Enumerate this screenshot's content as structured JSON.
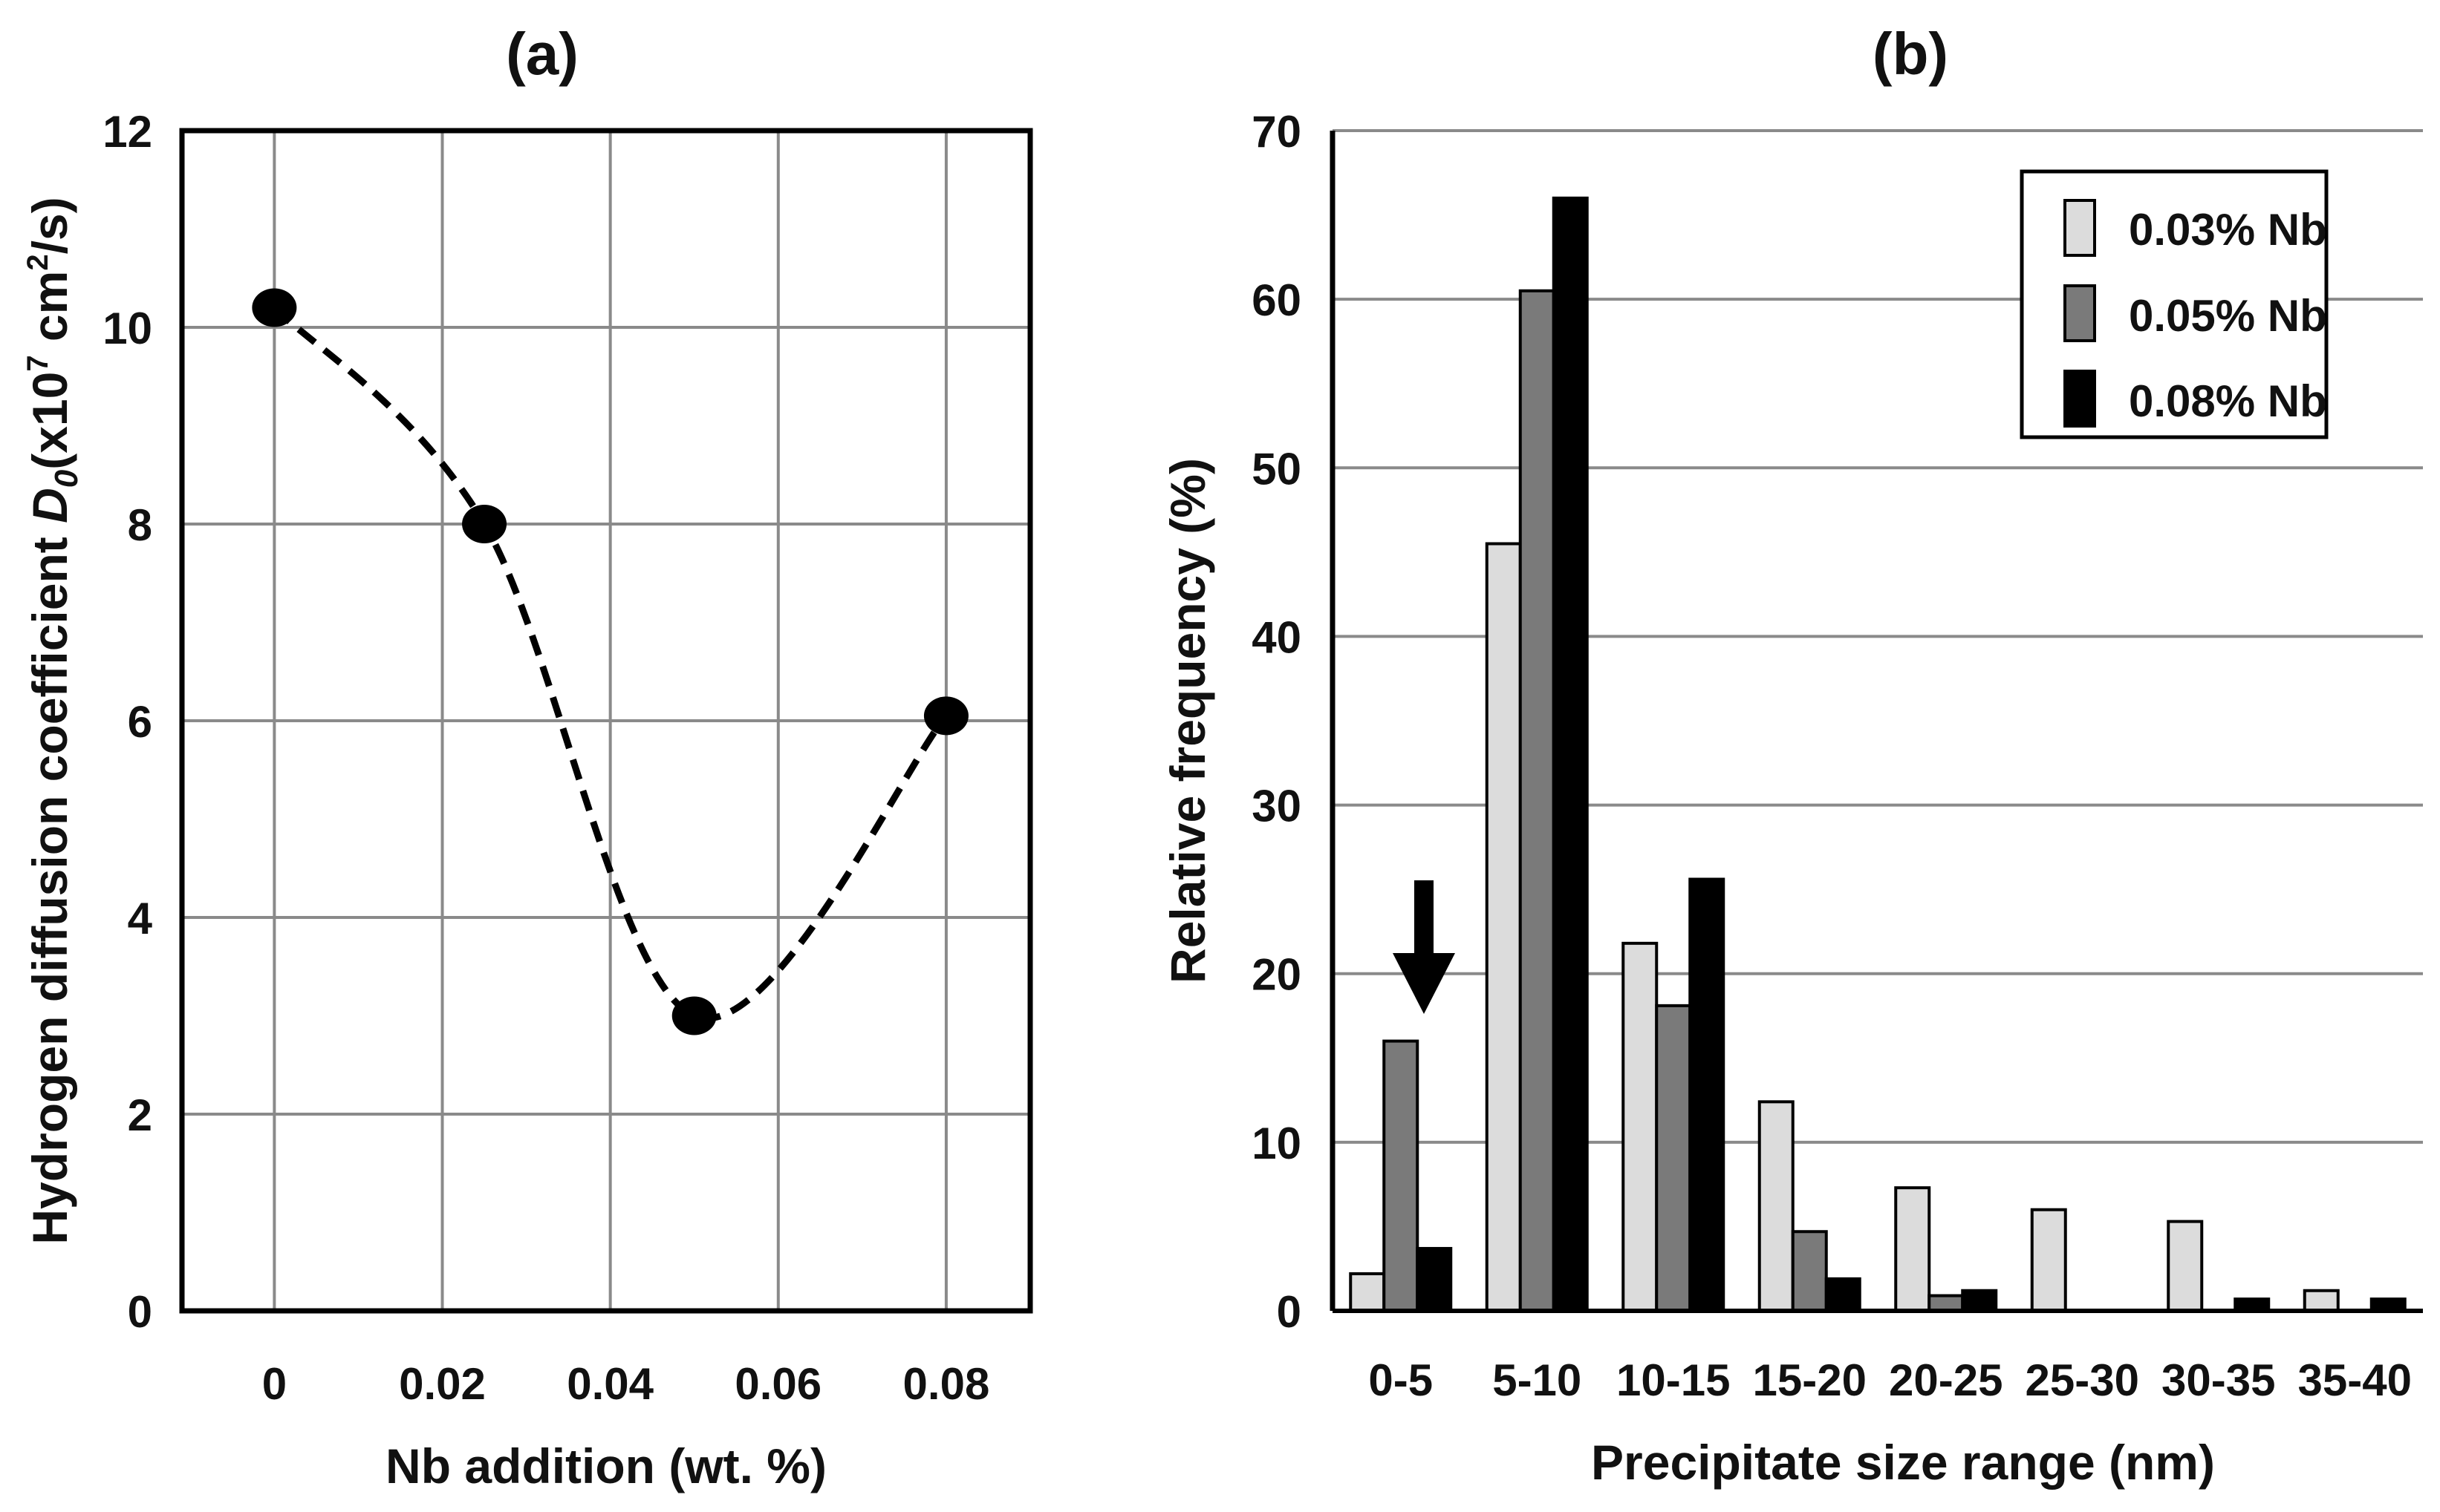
{
  "chart_data": [
    {
      "type": "line",
      "panel": "(a)",
      "title": "(a)",
      "xlabel": "Nb addition (wt. %)",
      "ylabel_main": "Hydrogen diffusion coefficient ",
      "ylabel_sym": "D",
      "ylabel_sub": "0",
      "ylabel_unit_a": "(x10",
      "ylabel_exp1": "7",
      "ylabel_unit_b": " cm",
      "ylabel_exp2": "2",
      "ylabel_unit_c": "/s)",
      "x": [
        0,
        0.025,
        0.05,
        0.08
      ],
      "y": [
        10.2,
        8.0,
        3.0,
        6.05
      ],
      "xlim": [
        -0.011,
        0.09
      ],
      "ylim": [
        0,
        12
      ],
      "xticks": [
        0,
        0.02,
        0.04,
        0.06,
        0.08
      ],
      "xtick_labels": [
        "0",
        "0.02",
        "0.04",
        "0.06",
        "0.08"
      ],
      "yticks": [
        0,
        2,
        4,
        6,
        8,
        10,
        12
      ],
      "ytick_labels": [
        "0",
        "2",
        "4",
        "6",
        "8",
        "10",
        "12"
      ],
      "grid": true,
      "line_style": "dashed"
    },
    {
      "type": "bar",
      "panel": "(b)",
      "title": "(b)",
      "xlabel": "Precipitate size range (nm)",
      "ylabel": "Relative frequency (%)",
      "categories": [
        "0-5",
        "5-10",
        "10-15",
        "15-20",
        "20-25",
        "25-30",
        "30-35",
        "35-40"
      ],
      "series": [
        {
          "name": "0.03% Nb",
          "color": "#dcdcdc",
          "values": [
            2.2,
            45.5,
            21.8,
            12.4,
            7.3,
            6.0,
            5.3,
            1.2
          ]
        },
        {
          "name": "0.05% Nb",
          "color": "#7a7a7a",
          "values": [
            16.0,
            60.5,
            18.1,
            4.7,
            0.9,
            0,
            0,
            0
          ]
        },
        {
          "name": "0.08% Nb",
          "color": "#000000",
          "values": [
            3.7,
            66.0,
            25.6,
            1.9,
            1.2,
            0,
            0.7,
            0.7
          ]
        }
      ],
      "ylim": [
        0,
        70
      ],
      "yticks": [
        0,
        10,
        20,
        30,
        40,
        50,
        60,
        70
      ],
      "ytick_labels": [
        "0",
        "10",
        "20",
        "30",
        "40",
        "50",
        "60",
        "70"
      ],
      "grid": true,
      "legend_position": "top-right",
      "annotation": "down-arrow above 0-5 group"
    }
  ]
}
